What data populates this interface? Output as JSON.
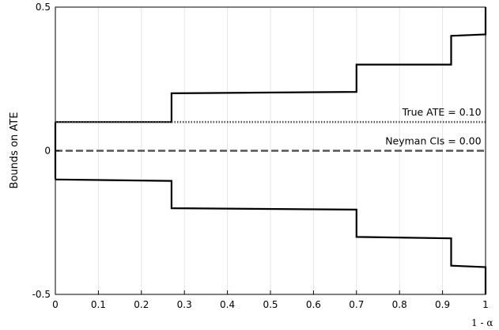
{
  "chart_data": {
    "type": "line",
    "title": "",
    "xlabel": "1 - α",
    "ylabel": "Bounds on ATE",
    "xlim": [
      0,
      1
    ],
    "ylim": [
      -0.5,
      0.5
    ],
    "grid": true,
    "x_ticks": [
      "0",
      "0.1",
      "0.2",
      "0.3",
      "0.4",
      "0.5",
      "0.6",
      "0.7",
      "0.8",
      "0.9",
      "1"
    ],
    "y_ticks": [
      "-0.5",
      "0",
      "0.5"
    ],
    "series": [
      {
        "style": "solid-step",
        "x": [
          0,
          0.27,
          0.27,
          0.7,
          0.7,
          0.92,
          0.92,
          1.0,
          1.0
        ],
        "y": [
          0.1,
          0.1,
          0.2,
          0.205,
          0.3,
          0.3,
          0.4,
          0.405,
          0.5
        ]
      },
      {
        "style": "solid-step",
        "x": [
          0,
          0.27,
          0.27,
          0.7,
          0.7,
          0.92,
          0.92,
          1.0,
          1.0
        ],
        "y": [
          -0.1,
          -0.105,
          -0.2,
          -0.205,
          -0.3,
          -0.305,
          -0.4,
          -0.405,
          -0.5
        ]
      },
      {
        "style": "vertical",
        "x": [
          0,
          0
        ],
        "y": [
          -0.1,
          0.1
        ]
      },
      {
        "style": "dotted",
        "x": [
          0,
          1
        ],
        "y": [
          0.1,
          0.1
        ]
      },
      {
        "style": "dashed",
        "x": [
          0,
          1
        ],
        "y": [
          0.0,
          0.0
        ]
      }
    ],
    "annotations": [
      {
        "text": "True ATE = 0.10",
        "x": 0.99,
        "y": 0.1,
        "align": "right"
      },
      {
        "text": "Neyman CIs = 0.00",
        "x": 0.99,
        "y": 0.0,
        "align": "right"
      }
    ]
  }
}
